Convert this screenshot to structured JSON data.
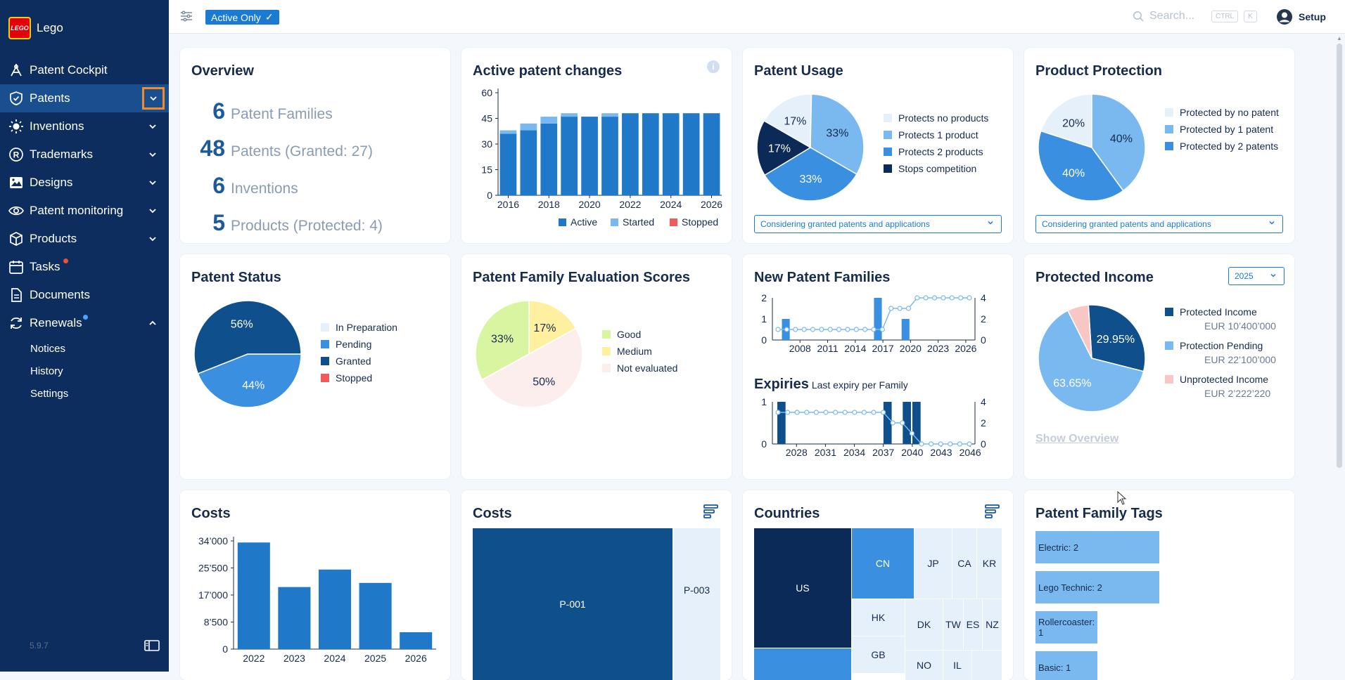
{
  "app": {
    "name": "Lego",
    "logo_text": "LEGO",
    "version": "5.9.7"
  },
  "sidebar": {
    "items": [
      {
        "label": "Patent Cockpit",
        "icon": "compass-icon",
        "chevron": ""
      },
      {
        "label": "Patents",
        "icon": "shield-check-icon",
        "chevron": "down",
        "selected": true,
        "highlighted_chevron": true
      },
      {
        "label": "Inventions",
        "icon": "lightbulb-icon",
        "chevron": "down"
      },
      {
        "label": "Trademarks",
        "icon": "registered-icon",
        "chevron": "down"
      },
      {
        "label": "Designs",
        "icon": "image-icon",
        "chevron": "down"
      },
      {
        "label": "Patent monitoring",
        "icon": "eye-icon",
        "chevron": "down"
      },
      {
        "label": "Products",
        "icon": "box-icon",
        "chevron": "down"
      },
      {
        "label": "Tasks",
        "icon": "calendar-icon",
        "chevron": "",
        "badge_color": "#f0522b"
      },
      {
        "label": "Documents",
        "icon": "document-icon",
        "chevron": ""
      },
      {
        "label": "Renewals",
        "icon": "refresh-icon",
        "chevron": "up",
        "badge_color": "#4aa3ff"
      }
    ],
    "subitems": [
      "Notices",
      "History",
      "Settings"
    ]
  },
  "topbar": {
    "filter_chip": "Active Only",
    "search_placeholder": "Search...",
    "kbd_ctrl": "CTRL",
    "kbd_k": "K",
    "setup_label": "Setup"
  },
  "colors": {
    "sidebar": "#0c2d5e",
    "accent": "#1b7bd1",
    "dark": "#1c5a9c",
    "navy": "#0b2a57",
    "light": "#e6f0fb",
    "mid": "#7ab8f0",
    "highlight": "#f28c28"
  },
  "overview": {
    "title": "Overview",
    "rows": [
      {
        "num": "6",
        "label": "Patent Families"
      },
      {
        "num": "48",
        "label": "Patents (Granted: 27)"
      },
      {
        "num": "6",
        "label": "Inventions"
      },
      {
        "num": "5",
        "label": "Products (Protected: 4)"
      }
    ]
  },
  "active_changes": {
    "title": "Active patent changes",
    "legend": [
      "Active",
      "Started",
      "Stopped"
    ],
    "chart_data": {
      "type": "bar",
      "categories": [
        "2016",
        "2017",
        "2018",
        "2019",
        "2020",
        "2021",
        "2022",
        "2023",
        "2024",
        "2025",
        "2026"
      ],
      "series": [
        {
          "name": "Active",
          "values": [
            36,
            38,
            42,
            46,
            46,
            46,
            48,
            48,
            48,
            48,
            48
          ]
        },
        {
          "name": "Started",
          "values": [
            2,
            4,
            4,
            2,
            0,
            2,
            0,
            0,
            0,
            0,
            0
          ]
        },
        {
          "name": "Stopped",
          "values": [
            0,
            0,
            0,
            0,
            0,
            0,
            0,
            0,
            0,
            0,
            0
          ]
        }
      ],
      "yticks": [
        "0",
        "15",
        "30",
        "45",
        "60"
      ],
      "xticks": [
        "2016",
        "2018",
        "2020",
        "2022",
        "2024",
        "2026"
      ],
      "ylim": [
        0,
        60
      ]
    }
  },
  "patent_usage": {
    "title": "Patent Usage",
    "legend": [
      "Protects no products",
      "Protects 1 product",
      "Protects 2 products",
      "Stops competition"
    ],
    "select": "Considering granted patents and applications",
    "chart_data": {
      "type": "pie",
      "labels": [
        "Protects no products",
        "Protects 1 product",
        "Protects 2 products",
        "Stops competition"
      ],
      "values": [
        17,
        33,
        33,
        17
      ],
      "value_labels": [
        "17%",
        "33%",
        "33%",
        "17%"
      ]
    }
  },
  "product_protection": {
    "title": "Product Protection",
    "legend": [
      "Protected by no patent",
      "Protected by 1 patent",
      "Protected by 2 patents"
    ],
    "select": "Considering granted patents and applications",
    "chart_data": {
      "type": "pie",
      "labels": [
        "Protected by no patent",
        "Protected by 1 patent",
        "Protected by 2 patents"
      ],
      "values": [
        20,
        40,
        40
      ],
      "value_labels": [
        "20%",
        "40%",
        "40%"
      ]
    }
  },
  "patent_status": {
    "title": "Patent Status",
    "legend": [
      "In Preparation",
      "Pending",
      "Granted",
      "Stopped"
    ],
    "chart_data": {
      "type": "pie",
      "labels": [
        "In Preparation",
        "Pending",
        "Granted",
        "Stopped"
      ],
      "values": [
        0,
        44,
        56,
        0
      ],
      "value_labels": [
        "",
        "44%",
        "56%",
        ""
      ]
    }
  },
  "evaluation": {
    "title": "Patent Family Evaluation Scores",
    "legend": [
      "Good",
      "Medium",
      "Not evaluated"
    ],
    "chart_data": {
      "type": "pie",
      "labels": [
        "Good",
        "Medium",
        "Not evaluated"
      ],
      "values": [
        33,
        17,
        50
      ],
      "value_labels": [
        "33%",
        "17%",
        "50%"
      ]
    }
  },
  "new_families": {
    "title": "New Patent Families",
    "expiries_title": "Expiries",
    "expiries_subtitle": "Last expiry per Family",
    "chart_data": [
      {
        "type": "bar",
        "xticks": [
          "2008",
          "2011",
          "2014",
          "2017",
          "2020",
          "2023",
          "2026"
        ],
        "yticks_left": [
          "0",
          "1",
          "2"
        ],
        "yticks_right": [
          "0",
          "2",
          "4"
        ],
        "bars": [
          {
            "x": 2006,
            "value": 1
          },
          {
            "x": 2016,
            "value": 2
          },
          {
            "x": 2019,
            "value": 1
          }
        ],
        "line": [
          1,
          1,
          1,
          1,
          1,
          1,
          1,
          1,
          1,
          1,
          1,
          1,
          1,
          3,
          3,
          3,
          4,
          4,
          4,
          4,
          4,
          4,
          4
        ],
        "x_range": [
          2005,
          2027
        ]
      },
      {
        "type": "bar",
        "xticks": [
          "2028",
          "2031",
          "2034",
          "2037",
          "2040",
          "2043",
          "2046"
        ],
        "yticks_left": [
          "0",
          "1"
        ],
        "yticks_right": [
          "0",
          "2",
          "4"
        ],
        "bars": [
          {
            "x": 2026,
            "value": 1
          },
          {
            "x": 2037,
            "value": 1
          },
          {
            "x": 2039,
            "value": 1
          },
          {
            "x": 2040,
            "value": 1
          }
        ],
        "line": [
          3,
          3,
          3,
          3,
          3,
          3,
          3,
          3,
          3,
          3,
          3,
          3,
          2,
          2,
          1,
          0,
          0,
          0,
          0,
          0,
          0
        ],
        "x_range": [
          2025.5,
          2046.5
        ]
      }
    ]
  },
  "protected_income": {
    "title": "Protected Income",
    "year": "2025",
    "show_overview": "Show Overview",
    "legend": [
      {
        "label": "Protected Income",
        "value": "EUR 10’400’000"
      },
      {
        "label": "Protection Pending",
        "value": "EUR 22’100’000"
      },
      {
        "label": "Unprotected Income",
        "value": "EUR 2’222’220"
      }
    ],
    "chart_data": {
      "type": "pie",
      "labels": [
        "Protected Income",
        "Protection Pending",
        "Unprotected Income"
      ],
      "values": [
        29.95,
        63.65,
        6.4
      ],
      "value_labels": [
        "29.95%",
        "63.65%",
        ""
      ]
    }
  },
  "costs_bar": {
    "title": "Costs",
    "chart_data": {
      "type": "bar",
      "categories": [
        "2022",
        "2023",
        "2024",
        "2025",
        "2026"
      ],
      "values": [
        33500,
        19500,
        25000,
        20800,
        5300
      ],
      "yticks": [
        "0",
        "8’500",
        "17’000",
        "25’500",
        "34’000"
      ],
      "ylim": [
        0,
        34000
      ]
    }
  },
  "costs_tree": {
    "title": "Costs",
    "cells": [
      "P-001",
      "P-003"
    ]
  },
  "countries": {
    "title": "Countries",
    "cells": [
      "US",
      "CN",
      "JP",
      "CA",
      "KR",
      "HK",
      "DK",
      "TW",
      "ES",
      "NZ",
      "GB",
      "NO",
      "IL"
    ]
  },
  "tags": {
    "title": "Patent Family Tags",
    "items": [
      {
        "label": "Electric: 2",
        "value": 2
      },
      {
        "label": "Lego Technic: 2",
        "value": 2
      },
      {
        "label": "Rollercoaster: 1",
        "value": 1
      },
      {
        "label": "Basic: 1",
        "value": 1
      }
    ]
  }
}
